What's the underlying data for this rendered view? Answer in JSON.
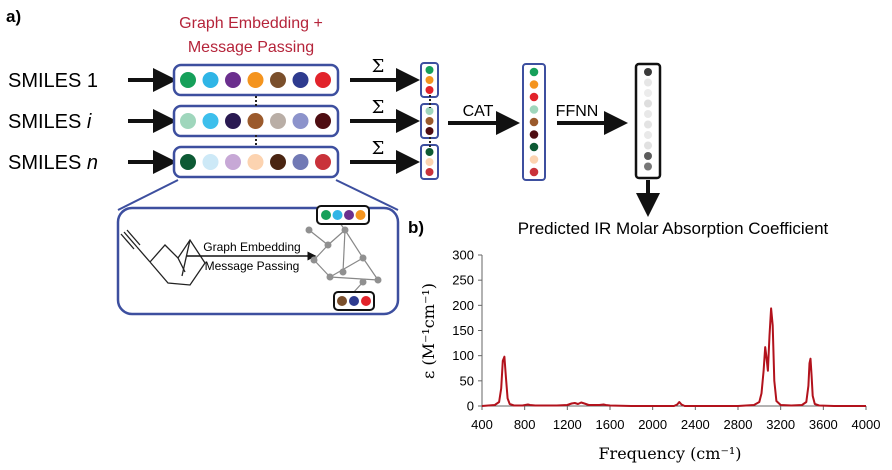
{
  "panel_a": {
    "label": "a)",
    "top_caption_line1": "Graph Embedding +",
    "top_caption_line2": "Message Passing",
    "inputs": [
      {
        "prefix": "SMILES",
        "suffix": "1",
        "suffix_italic": false,
        "colors": [
          "#16a05a",
          "#2fb5e6",
          "#6b2f8e",
          "#f4941e",
          "#7a4f2c",
          "#2e3b8f",
          "#e2232b"
        ]
      },
      {
        "prefix": "SMILES",
        "suffix": "i",
        "suffix_italic": true,
        "colors": [
          "#9fd6bc",
          "#3dbfec",
          "#2a1a52",
          "#9b5a2c",
          "#b9aea6",
          "#8c93cb",
          "#4e0d12"
        ]
      },
      {
        "prefix": "SMILES",
        "suffix": "n",
        "suffix_italic": true,
        "colors": [
          "#0d5a34",
          "#cde9f7",
          "#c7a8d6",
          "#fcd3b0",
          "#4a2512",
          "#7179b5",
          "#c9323a"
        ]
      }
    ],
    "sum_symbol": "Σ",
    "pooled": [
      [
        "#16a05a",
        "#f4941e",
        "#e2232b"
      ],
      [
        "#9fd6bc",
        "#9b5a2c",
        "#4e0d12"
      ],
      [
        "#0d5a34",
        "#fcd3b0",
        "#c9323a"
      ]
    ],
    "cat_label": "CAT",
    "cat_vector": [
      "#16a05a",
      "#f4941e",
      "#e2232b",
      "#9fd6bc",
      "#9b5a2c",
      "#4e0d12",
      "#0d5a34",
      "#fcd3b0",
      "#c9323a"
    ],
    "ffnn_label": "FFNN",
    "ffnn_vector": [
      "#3a3a3a",
      "#e6e6e6",
      "#ececec",
      "#dedede",
      "#e8e8e8",
      "#e3e3e3",
      "#e9e9e9",
      "#e1e1e1",
      "#5c5c5c",
      "#777777"
    ],
    "inset_caption_line1": "Graph Embedding",
    "inset_caption_line2": "Message Passing",
    "inset_top_colors": [
      "#16a05a",
      "#2fb5e6",
      "#6b2f8e",
      "#f4941e"
    ],
    "inset_bottom_colors": [
      "#7a4f2c",
      "#2e3b8f",
      "#e2232b"
    ],
    "colors": {
      "box_border": "#3d4f9f",
      "caption_red": "#b5243a"
    }
  },
  "panel_b": {
    "label": "b)"
  },
  "chart_data": {
    "type": "line",
    "title": "Predicted IR Molar Absorption Coefficient",
    "xlabel": "Frequency (cm⁻¹)",
    "ylabel": "ε (M⁻¹cm⁻¹)",
    "xlim": [
      400,
      4000
    ],
    "ylim": [
      0,
      300
    ],
    "x_ticks": [
      400,
      800,
      1200,
      1600,
      2000,
      2400,
      2800,
      3200,
      3600,
      4000
    ],
    "y_ticks": [
      0,
      50,
      100,
      150,
      200,
      250,
      300
    ],
    "grid": false,
    "line_color": "#b2121c",
    "series": [
      {
        "x": [
          400,
          520,
          560,
          580,
          595,
          610,
          625,
          640,
          660,
          700,
          780,
          830,
          850,
          900,
          1000,
          1100,
          1200,
          1240,
          1270,
          1300,
          1330,
          1360,
          1400,
          1500,
          1540,
          1560,
          1600,
          1800,
          2000,
          2200,
          2230,
          2250,
          2270,
          2300,
          2600,
          2800,
          2950,
          3000,
          3020,
          3040,
          3055,
          3065,
          3080,
          3095,
          3110,
          3125,
          3140,
          3160,
          3200,
          3300,
          3400,
          3440,
          3460,
          3470,
          3480,
          3490,
          3500,
          3520,
          3560,
          3700,
          4000
        ],
        "y": [
          0,
          2,
          8,
          35,
          90,
          98,
          55,
          15,
          4,
          1,
          1,
          3,
          2,
          1,
          1,
          1,
          2,
          5,
          6,
          4,
          7,
          5,
          2,
          2,
          3,
          2,
          1,
          0,
          0,
          0,
          3,
          8,
          3,
          0,
          0,
          0,
          2,
          8,
          25,
          70,
          117,
          100,
          70,
          140,
          194,
          160,
          50,
          10,
          2,
          1,
          2,
          8,
          40,
          85,
          94,
          60,
          20,
          4,
          1,
          0,
          0
        ]
      }
    ]
  }
}
